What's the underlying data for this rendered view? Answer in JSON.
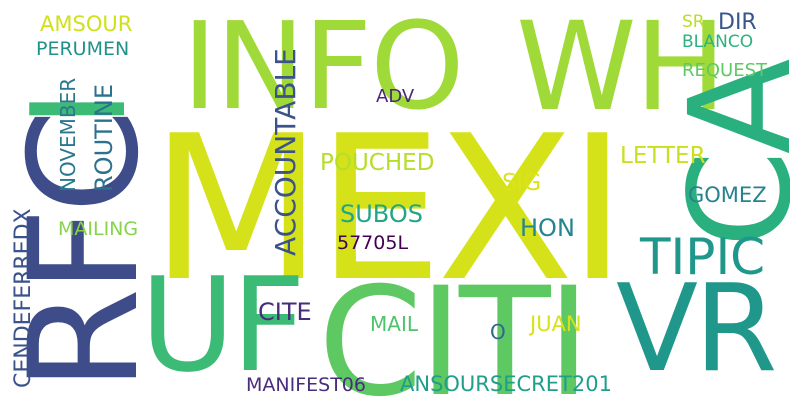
{
  "words": {
    "mexi": {
      "text": "MEXI",
      "color": "#d5e21a"
    },
    "citi": {
      "text": "CITI",
      "color": "#5ec962"
    },
    "info": {
      "text": "INFO",
      "color": "#a0da39"
    },
    "wh": {
      "text": "WH",
      "color": "#a0da39"
    },
    "uf": {
      "text": "UF",
      "color": "#3bbb75"
    },
    "vr": {
      "text": "VR",
      "color": "#1f988b"
    },
    "rfc": {
      "text": "RFC",
      "color": "#3e4c8a"
    },
    "i_green": {
      "text": "I",
      "color": "#3bbb75"
    },
    "ca": {
      "text": "CA",
      "color": "#2ab07f"
    },
    "tipic": {
      "text": "TIPIC",
      "color": "#1f988b"
    },
    "accountable": {
      "text": "ACCOUNTABLE",
      "color": "#3b528b"
    },
    "routine": {
      "text": "ROUTINE",
      "color": "#2c728e"
    },
    "november": {
      "text": "NOVEMBER",
      "color": "#2a788e"
    },
    "cendeferredx": {
      "text": "CENDEFERREDX",
      "color": "#3b528b"
    },
    "amsour": {
      "text": "AMSOUR",
      "color": "#d0e11c"
    },
    "perumen": {
      "text": "PERUMEN",
      "color": "#21918c"
    },
    "pouched": {
      "text": "POUCHED",
      "color": "#b5de2b"
    },
    "subos": {
      "text": "SUBOS",
      "color": "#21a685"
    },
    "sig": {
      "text": "SIG",
      "color": "#dde318"
    },
    "hon": {
      "text": "HON",
      "color": "#25858e"
    },
    "letter": {
      "text": "LETTER",
      "color": "#c8e020"
    },
    "gomez": {
      "text": "GOMEZ",
      "color": "#26828e"
    },
    "adv": {
      "text": "ADV",
      "color": "#482878"
    },
    "mailing": {
      "text": "MAILING",
      "color": "#86d549"
    },
    "cite": {
      "text": "CITE",
      "color": "#472c7a"
    },
    "mail": {
      "text": "MAIL",
      "color": "#4ec36b"
    },
    "o": {
      "text": "O",
      "color": "#31688e"
    },
    "juan": {
      "text": "JUAN",
      "color": "#d8e219"
    },
    "code": {
      "text": "57705L",
      "color": "#440154"
    },
    "manifest": {
      "text": "MANIFEST06",
      "color": "#472d7b"
    },
    "ansoursecret": {
      "text": "ANSOURSECRET201",
      "color": "#1f9e89"
    },
    "sr": {
      "text": "SR",
      "color": "#b8de29"
    },
    "dir": {
      "text": "DIR",
      "color": "#39568c"
    },
    "blanco": {
      "text": "BLANCO",
      "color": "#2db27d"
    },
    "request": {
      "text": "REQUEST",
      "color": "#5ec962"
    }
  }
}
